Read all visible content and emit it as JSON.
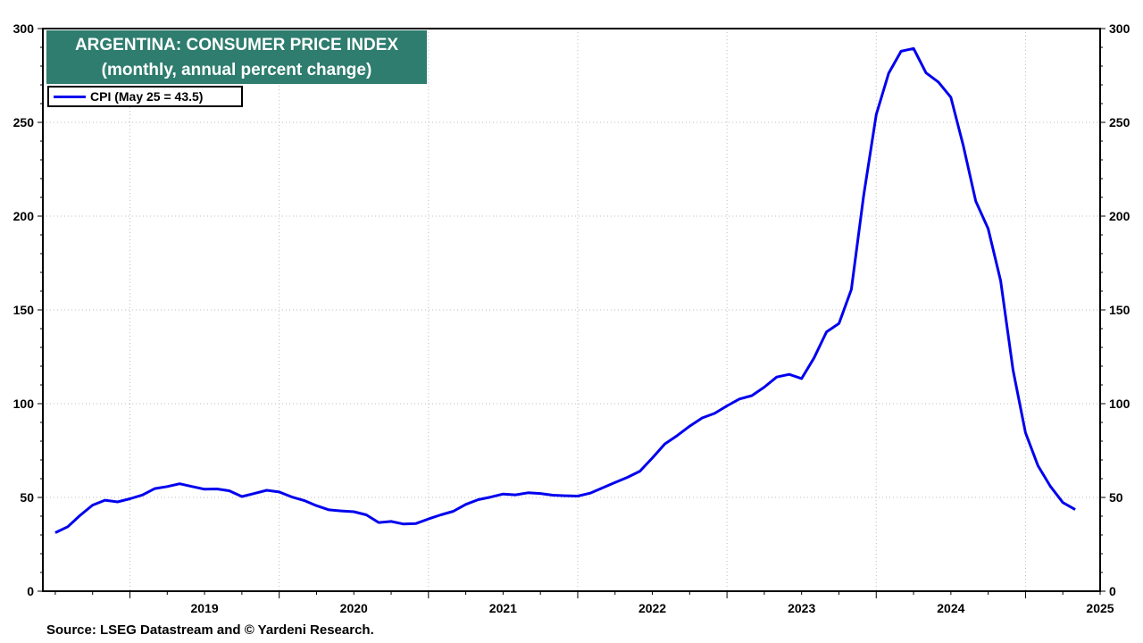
{
  "chart_data": {
    "type": "line",
    "title": "ARGENTINA: CONSUMER PRICE INDEX",
    "subtitle": "(monthly, annual percent change)",
    "source": "Source: LSEG Datastream and © Yardeni Research.",
    "ylim": [
      0,
      300
    ],
    "y_ticks": [
      0,
      50,
      100,
      150,
      200,
      250,
      300
    ],
    "y_axis_sides": "left and right",
    "x_labels": [
      "2019",
      "2020",
      "2021",
      "2022",
      "2023",
      "2024",
      "2025"
    ],
    "grid": true,
    "legend_position": "top-left",
    "colors": {
      "line": "#0000ee",
      "title_bg": "#2e7d6e"
    },
    "series": [
      {
        "name": "CPI (May 25 = 43.5)",
        "x": [
          "2018-07",
          "2018-08",
          "2018-09",
          "2018-10",
          "2018-11",
          "2018-12",
          "2019-01",
          "2019-02",
          "2019-03",
          "2019-04",
          "2019-05",
          "2019-06",
          "2019-07",
          "2019-08",
          "2019-09",
          "2019-10",
          "2019-11",
          "2019-12",
          "2020-01",
          "2020-02",
          "2020-03",
          "2020-04",
          "2020-05",
          "2020-06",
          "2020-07",
          "2020-08",
          "2020-09",
          "2020-10",
          "2020-11",
          "2020-12",
          "2021-01",
          "2021-02",
          "2021-03",
          "2021-04",
          "2021-05",
          "2021-06",
          "2021-07",
          "2021-08",
          "2021-09",
          "2021-10",
          "2021-11",
          "2021-12",
          "2022-01",
          "2022-02",
          "2022-03",
          "2022-04",
          "2022-05",
          "2022-06",
          "2022-07",
          "2022-08",
          "2022-09",
          "2022-10",
          "2022-11",
          "2022-12",
          "2023-01",
          "2023-02",
          "2023-03",
          "2023-04",
          "2023-05",
          "2023-06",
          "2023-07",
          "2023-08",
          "2023-09",
          "2023-10",
          "2023-11",
          "2023-12",
          "2024-01",
          "2024-02",
          "2024-03",
          "2024-04",
          "2024-05",
          "2024-06",
          "2024-07",
          "2024-08",
          "2024-09",
          "2024-10",
          "2024-11",
          "2024-12",
          "2025-01",
          "2025-02",
          "2025-03",
          "2025-04",
          "2025-05"
        ],
        "values": [
          31.2,
          34.4,
          40.5,
          45.9,
          48.5,
          47.6,
          49.3,
          51.3,
          54.7,
          55.8,
          57.3,
          55.8,
          54.4,
          54.5,
          53.5,
          50.5,
          52.1,
          53.8,
          52.9,
          50.3,
          48.4,
          45.6,
          43.4,
          42.8,
          42.4,
          40.7,
          36.6,
          37.2,
          35.8,
          36.1,
          38.5,
          40.7,
          42.6,
          46.3,
          48.8,
          50.2,
          51.8,
          51.4,
          52.5,
          52.1,
          51.2,
          50.9,
          50.7,
          52.3,
          55.1,
          58.0,
          60.7,
          64.0,
          71.0,
          78.5,
          83.0,
          88.0,
          92.4,
          94.8,
          98.8,
          102.5,
          104.3,
          108.8,
          114.2,
          115.6,
          113.4,
          124.4,
          138.3,
          142.7,
          160.9,
          211.4,
          254.2,
          276.2,
          287.9,
          289.4,
          276.4,
          271.5,
          263.4,
          237.5,
          208.0,
          193.3,
          165.5,
          117.8,
          84.5,
          66.9,
          55.9,
          47.3,
          43.5
        ]
      }
    ]
  }
}
